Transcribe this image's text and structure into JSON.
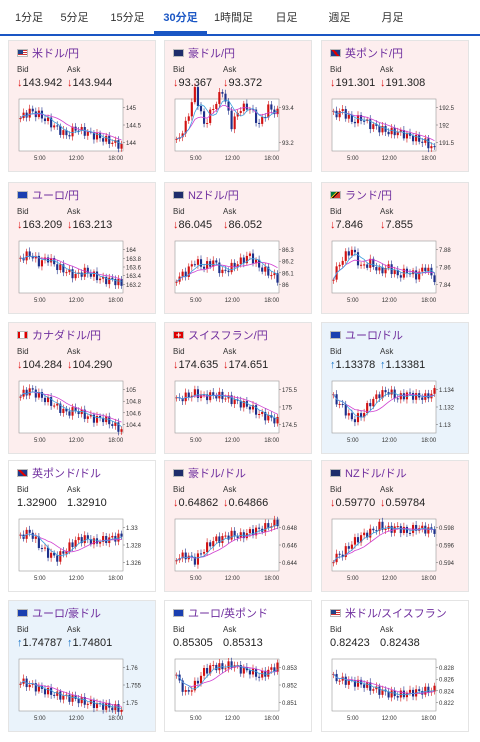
{
  "tabs": [
    "1分足",
    "5分足",
    "15分足",
    "30分足",
    "1時間足",
    "日足",
    "週足",
    "月足"
  ],
  "active_tab": 3,
  "cards": [
    {
      "name": "米ドル/円",
      "flag": "us",
      "state": "down",
      "bid": "143.942",
      "ask": "143.944",
      "bid_dir": "down",
      "ask_dir": "down",
      "yticks": [
        "145",
        "144.5",
        "144"
      ],
      "xticks": [
        "5:00",
        "12:00",
        "18:00"
      ],
      "trend": [
        144.7,
        144.9,
        144.8,
        144.6,
        144.4,
        144.2,
        144.4,
        144.3,
        144.2,
        144.1,
        144.0,
        143.9
      ]
    },
    {
      "name": "豪ドル/円",
      "flag": "au",
      "state": "down",
      "bid": "93.367",
      "ask": "93.372",
      "bid_dir": "down",
      "ask_dir": "down",
      "yticks": [
        "93.4",
        "93.2"
      ],
      "xticks": [
        "5:00",
        "12:00",
        "18:00"
      ],
      "trend": [
        93.2,
        93.3,
        93.5,
        93.3,
        93.4,
        93.5,
        93.3,
        93.4,
        93.4,
        93.3,
        93.4,
        93.37
      ]
    },
    {
      "name": "英ポンド/円",
      "flag": "gb",
      "state": "down",
      "bid": "191.301",
      "ask": "191.308",
      "bid_dir": "down",
      "ask_dir": "down",
      "yticks": [
        "192.5",
        "192",
        "191.5"
      ],
      "xticks": [
        "5:00",
        "12:00",
        "18:00"
      ],
      "trend": [
        192.3,
        192.4,
        192.1,
        192.2,
        192.0,
        191.9,
        191.8,
        191.8,
        191.7,
        191.6,
        191.5,
        191.3
      ]
    },
    {
      "name": "ユーロ/円",
      "flag": "eu",
      "state": "down",
      "bid": "163.209",
      "ask": "163.213",
      "bid_dir": "down",
      "ask_dir": "down",
      "yticks": [
        "164",
        "163.8",
        "163.6",
        "163.4",
        "163.2"
      ],
      "xticks": [
        "5:00",
        "12:00",
        "18:00"
      ],
      "trend": [
        163.8,
        163.9,
        163.7,
        163.8,
        163.6,
        163.5,
        163.4,
        163.5,
        163.4,
        163.3,
        163.3,
        163.2
      ]
    },
    {
      "name": "NZドル/円",
      "flag": "nz",
      "state": "down",
      "bid": "86.045",
      "ask": "86.052",
      "bid_dir": "down",
      "ask_dir": "down",
      "yticks": [
        "86.3",
        "86.2",
        "86.1",
        "86"
      ],
      "xticks": [
        "5:00",
        "12:00",
        "18:00"
      ],
      "trend": [
        86.05,
        86.1,
        86.2,
        86.15,
        86.2,
        86.1,
        86.15,
        86.2,
        86.25,
        86.15,
        86.1,
        86.05
      ]
    },
    {
      "name": "ランド/円",
      "flag": "za",
      "state": "down",
      "bid": "7.846",
      "ask": "7.855",
      "bid_dir": "down",
      "ask_dir": "down",
      "yticks": [
        "7.88",
        "7.86",
        "7.84"
      ],
      "xticks": [
        "5:00",
        "12:00",
        "18:00"
      ],
      "trend": [
        7.85,
        7.87,
        7.88,
        7.86,
        7.865,
        7.855,
        7.86,
        7.85,
        7.855,
        7.85,
        7.86,
        7.846
      ]
    },
    {
      "name": "カナダドル/円",
      "flag": "ca",
      "state": "down",
      "bid": "104.284",
      "ask": "104.290",
      "bid_dir": "down",
      "ask_dir": "down",
      "yticks": [
        "105",
        "104.8",
        "104.6",
        "104.4"
      ],
      "xticks": [
        "5:00",
        "12:00",
        "18:00"
      ],
      "trend": [
        104.9,
        105.0,
        104.9,
        104.8,
        104.7,
        104.6,
        104.65,
        104.55,
        104.5,
        104.5,
        104.4,
        104.3
      ]
    },
    {
      "name": "スイスフラン/円",
      "flag": "ch",
      "state": "down",
      "bid": "174.635",
      "ask": "174.651",
      "bid_dir": "down",
      "ask_dir": "down",
      "yticks": [
        "175.5",
        "175",
        "174.5"
      ],
      "xticks": [
        "5:00",
        "12:00",
        "18:00"
      ],
      "trend": [
        175.2,
        175.3,
        175.4,
        175.3,
        175.35,
        175.3,
        175.2,
        175.1,
        175.0,
        174.8,
        174.7,
        174.6
      ]
    },
    {
      "name": "ユーロ/ドル",
      "flag": "eu",
      "state": "up",
      "bid": "1.13378",
      "ask": "1.13381",
      "bid_dir": "up",
      "ask_dir": "up",
      "yticks": [
        "1.134",
        "1.132",
        "1.13"
      ],
      "xticks": [
        "5:00",
        "12:00",
        "18:00"
      ],
      "trend": [
        1.133,
        1.132,
        1.1305,
        1.131,
        1.1325,
        1.1335,
        1.1338,
        1.133,
        1.1335,
        1.1332,
        1.1331,
        1.1338
      ]
    },
    {
      "name": "英ポンド/ドル",
      "flag": "gb",
      "state": "flat",
      "bid": "1.32900",
      "ask": "1.32910",
      "bid_dir": "none",
      "ask_dir": "none",
      "yticks": [
        "1.33",
        "1.328",
        "1.326"
      ],
      "xticks": [
        "5:00",
        "12:00",
        "18:00"
      ],
      "trend": [
        1.329,
        1.3295,
        1.328,
        1.327,
        1.3265,
        1.3275,
        1.3285,
        1.3288,
        1.3283,
        1.3286,
        1.3288,
        1.329
      ]
    },
    {
      "name": "豪ドル/ドル",
      "flag": "au",
      "state": "down",
      "bid": "0.64862",
      "ask": "0.64866",
      "bid_dir": "down",
      "ask_dir": "down",
      "yticks": [
        "0.648",
        "0.646",
        "0.644"
      ],
      "xticks": [
        "5:00",
        "12:00",
        "18:00"
      ],
      "trend": [
        0.6445,
        0.6448,
        0.6442,
        0.6455,
        0.6465,
        0.6468,
        0.6472,
        0.647,
        0.6475,
        0.6478,
        0.6482,
        0.6486
      ]
    },
    {
      "name": "NZドル/ドル",
      "flag": "nz",
      "state": "down",
      "bid": "0.59770",
      "ask": "0.59784",
      "bid_dir": "down",
      "ask_dir": "down",
      "yticks": [
        "0.598",
        "0.596",
        "0.594"
      ],
      "xticks": [
        "5:00",
        "12:00",
        "18:00"
      ],
      "trend": [
        0.5945,
        0.595,
        0.5962,
        0.597,
        0.5975,
        0.5982,
        0.5978,
        0.598,
        0.5975,
        0.598,
        0.5978,
        0.5977
      ]
    },
    {
      "name": "ユーロ/豪ドル",
      "flag": "eu",
      "state": "up",
      "bid": "1.74787",
      "ask": "1.74801",
      "bid_dir": "up",
      "ask_dir": "up",
      "yticks": [
        "1.76",
        "1.755",
        "1.75"
      ],
      "xticks": [
        "5:00",
        "12:00",
        "18:00"
      ],
      "trend": [
        1.756,
        1.755,
        1.754,
        1.753,
        1.752,
        1.7515,
        1.751,
        1.75,
        1.7495,
        1.749,
        1.7485,
        1.7479
      ]
    },
    {
      "name": "ユーロ/英ポンド",
      "flag": "eu",
      "state": "flat",
      "bid": "0.85305",
      "ask": "0.85313",
      "bid_dir": "none",
      "ask_dir": "none",
      "yticks": [
        "0.853",
        "0.852",
        "0.851"
      ],
      "xticks": [
        "5:00",
        "12:00",
        "18:00"
      ],
      "trend": [
        0.8525,
        0.8515,
        0.852,
        0.8528,
        0.8531,
        0.853,
        0.8532,
        0.8529,
        0.8528,
        0.8525,
        0.8528,
        0.8531
      ]
    },
    {
      "name": "米ドル/スイスフラン",
      "flag": "us",
      "state": "flat",
      "bid": "0.82423",
      "ask": "0.82438",
      "bid_dir": "none",
      "ask_dir": "none",
      "yticks": [
        "0.828",
        "0.826",
        "0.824",
        "0.822"
      ],
      "xticks": [
        "5:00",
        "12:00",
        "18:00"
      ],
      "trend": [
        0.8262,
        0.8258,
        0.8255,
        0.8252,
        0.8245,
        0.824,
        0.8235,
        0.8232,
        0.8236,
        0.8238,
        0.824,
        0.8242
      ]
    }
  ],
  "labels": {
    "bid": "Bid",
    "ask": "Ask"
  },
  "colors": {
    "up": "#1673c8",
    "down": "#d11111",
    "accent": "#1a56c4",
    "title": "#6f2e9e",
    "ma": "#d03fd0",
    "ma2": "#3da0dd"
  }
}
